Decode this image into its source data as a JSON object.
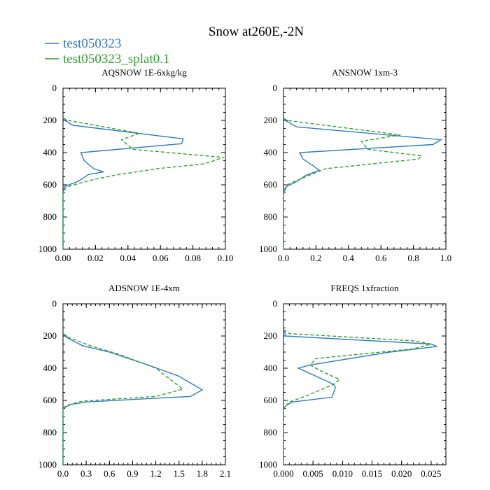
{
  "title": "Snow at260E,-2N",
  "legend": [
    {
      "label": "test050323",
      "color": "#2f7bbd",
      "dash": "solid"
    },
    {
      "label": "test050323_splat0.1",
      "color": "#2ea02f",
      "dash": "dashed"
    }
  ],
  "chart_data": [
    {
      "type": "line",
      "title": "AQSNOW  1E-6xkg/kg",
      "xlim": [
        0,
        0.1
      ],
      "ylim": [
        0,
        1000
      ],
      "y_inverted": true,
      "xticks": [
        "0.00",
        "0.02",
        "0.04",
        "0.06",
        "0.08",
        "0.10"
      ],
      "yticks": [
        "0",
        "200",
        "400",
        "600",
        "800",
        "1000"
      ],
      "series": [
        {
          "name": "test050323",
          "color": "#2f7bbd",
          "dash": "solid",
          "x": [
            0,
            0.001,
            0.006,
            0.074,
            0.073,
            0.011,
            0.013,
            0.019,
            0.025,
            0.016,
            0.009,
            0.001,
            0,
            0
          ],
          "y": [
            185,
            200,
            230,
            315,
            345,
            400,
            450,
            500,
            520,
            535,
            580,
            610,
            650,
            1000
          ]
        },
        {
          "name": "test050323_splat0.1",
          "color": "#2ea02f",
          "dash": "dashed",
          "x": [
            0,
            0.003,
            0.047,
            0.036,
            0.043,
            0.099,
            0.087,
            0.058,
            0.035,
            0.022,
            0.012,
            0.002,
            0,
            0
          ],
          "y": [
            185,
            200,
            280,
            320,
            380,
            430,
            470,
            500,
            535,
            560,
            585,
            615,
            650,
            1000
          ]
        }
      ]
    },
    {
      "type": "line",
      "title": "ANSNOW  1xm-3",
      "xlim": [
        0,
        1.0
      ],
      "ylim": [
        0,
        1000
      ],
      "y_inverted": true,
      "xticks": [
        "0.0",
        "0.2",
        "0.4",
        "0.6",
        "0.8",
        "1.0"
      ],
      "yticks": [
        "0",
        "200",
        "400",
        "600",
        "800",
        "1000"
      ],
      "series": [
        {
          "name": "test050323",
          "color": "#2f7bbd",
          "dash": "solid",
          "x": [
            0,
            0.01,
            0.08,
            0.97,
            0.92,
            0.1,
            0.12,
            0.18,
            0.22,
            0.14,
            0.08,
            0.02,
            0,
            0
          ],
          "y": [
            185,
            200,
            240,
            320,
            350,
            400,
            440,
            480,
            510,
            540,
            580,
            610,
            650,
            1000
          ]
        },
        {
          "name": "test050323_splat0.1",
          "color": "#2ea02f",
          "dash": "dashed",
          "x": [
            0,
            0.02,
            0.72,
            0.48,
            0.52,
            0.85,
            0.83,
            0.26,
            0.16,
            0.09,
            0.04,
            0.01,
            0,
            0
          ],
          "y": [
            185,
            200,
            290,
            330,
            380,
            420,
            440,
            500,
            540,
            570,
            590,
            620,
            650,
            1000
          ]
        }
      ]
    },
    {
      "type": "line",
      "title": "ADSNOW  1E-4xm",
      "xlim": [
        0,
        2.1
      ],
      "ylim": [
        0,
        1000
      ],
      "y_inverted": true,
      "xticks": [
        "0.0",
        "0.3",
        "0.6",
        "0.9",
        "1.2",
        "1.5",
        "1.8",
        "2.1"
      ],
      "yticks": [
        "0",
        "200",
        "400",
        "600",
        "800",
        "1000"
      ],
      "series": [
        {
          "name": "test050323",
          "color": "#2f7bbd",
          "dash": "solid",
          "x": [
            0,
            0.05,
            0.25,
            0.6,
            1.1,
            1.5,
            1.8,
            1.65,
            0.3,
            0.1,
            0,
            0
          ],
          "y": [
            185,
            210,
            260,
            300,
            380,
            450,
            535,
            575,
            610,
            625,
            650,
            1000
          ]
        },
        {
          "name": "test050323_splat0.1",
          "color": "#2ea02f",
          "dash": "dashed",
          "x": [
            0,
            0.08,
            0.35,
            0.7,
            1.2,
            1.55,
            1.2,
            0.25,
            0.05,
            0,
            0
          ],
          "y": [
            185,
            210,
            260,
            310,
            400,
            530,
            575,
            605,
            630,
            650,
            1000
          ]
        }
      ]
    },
    {
      "type": "line",
      "title": "FREQS  1xfraction",
      "xlim": [
        0,
        0.0275
      ],
      "ylim": [
        0,
        1000
      ],
      "y_inverted": true,
      "xticks": [
        "0.000",
        "0.005",
        "0.010",
        "0.015",
        "0.020",
        "0.025"
      ],
      "yticks": [
        "0",
        "200",
        "400",
        "600",
        "800",
        "1000"
      ],
      "series": [
        {
          "name": "test050323",
          "color": "#2f7bbd",
          "dash": "solid",
          "x": [
            0,
            0.0003,
            0.0002,
            0.025,
            0.026,
            0.018,
            0.0045,
            0.0025,
            0.0055,
            0.0085,
            0.0088,
            0.0082,
            0.0015,
            0.0005,
            0,
            0
          ],
          "y": [
            160,
            185,
            200,
            250,
            265,
            300,
            380,
            400,
            450,
            500,
            520,
            580,
            610,
            630,
            650,
            1000
          ]
        },
        {
          "name": "test050323_splat0.1",
          "color": "#2ea02f",
          "dash": "dashed",
          "x": [
            0,
            0.001,
            0.022,
            0.025,
            0.022,
            0.0055,
            0.0045,
            0.0065,
            0.0095,
            0.0085,
            0.004,
            0.001,
            0,
            0
          ],
          "y": [
            160,
            185,
            230,
            250,
            280,
            340,
            380,
            420,
            470,
            500,
            570,
            610,
            650,
            1000
          ]
        }
      ]
    }
  ]
}
